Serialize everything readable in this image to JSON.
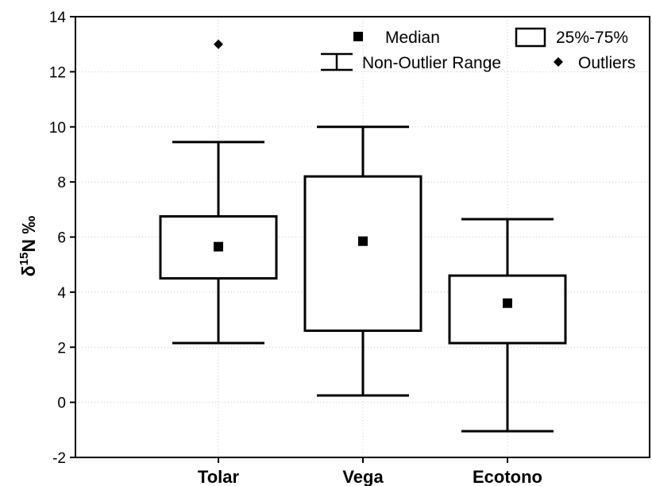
{
  "chart_data": {
    "type": "boxplot",
    "categories": [
      "Tolar",
      "Vega",
      "Ecotono"
    ],
    "boxes": [
      {
        "category": "Tolar",
        "median": 5.65,
        "q1": 4.5,
        "q3": 6.75,
        "whisker_low": 2.15,
        "whisker_high": 9.45,
        "outliers": [
          13.0
        ]
      },
      {
        "category": "Vega",
        "median": 5.85,
        "q1": 2.6,
        "q3": 8.2,
        "whisker_low": 0.25,
        "whisker_high": 10.0,
        "outliers": []
      },
      {
        "category": "Ecotono",
        "median": 3.6,
        "q1": 2.15,
        "q3": 4.6,
        "whisker_low": -1.05,
        "whisker_high": 6.65,
        "outliers": []
      }
    ],
    "ylabel": {
      "base": "δ",
      "sup": "15",
      "rest": "N ‰"
    },
    "ylim": [
      -2,
      14
    ],
    "yticks": [
      -2,
      0,
      2,
      4,
      6,
      8,
      10,
      12,
      14
    ],
    "grid": true,
    "legend": {
      "position": "top-right",
      "items": [
        {
          "symbol": "square",
          "label": "Median"
        },
        {
          "symbol": "box",
          "label": "25%-75%"
        },
        {
          "symbol": "whisker",
          "label": "Non-Outlier Range"
        },
        {
          "symbol": "diamond",
          "label": "Outliers"
        }
      ]
    }
  }
}
